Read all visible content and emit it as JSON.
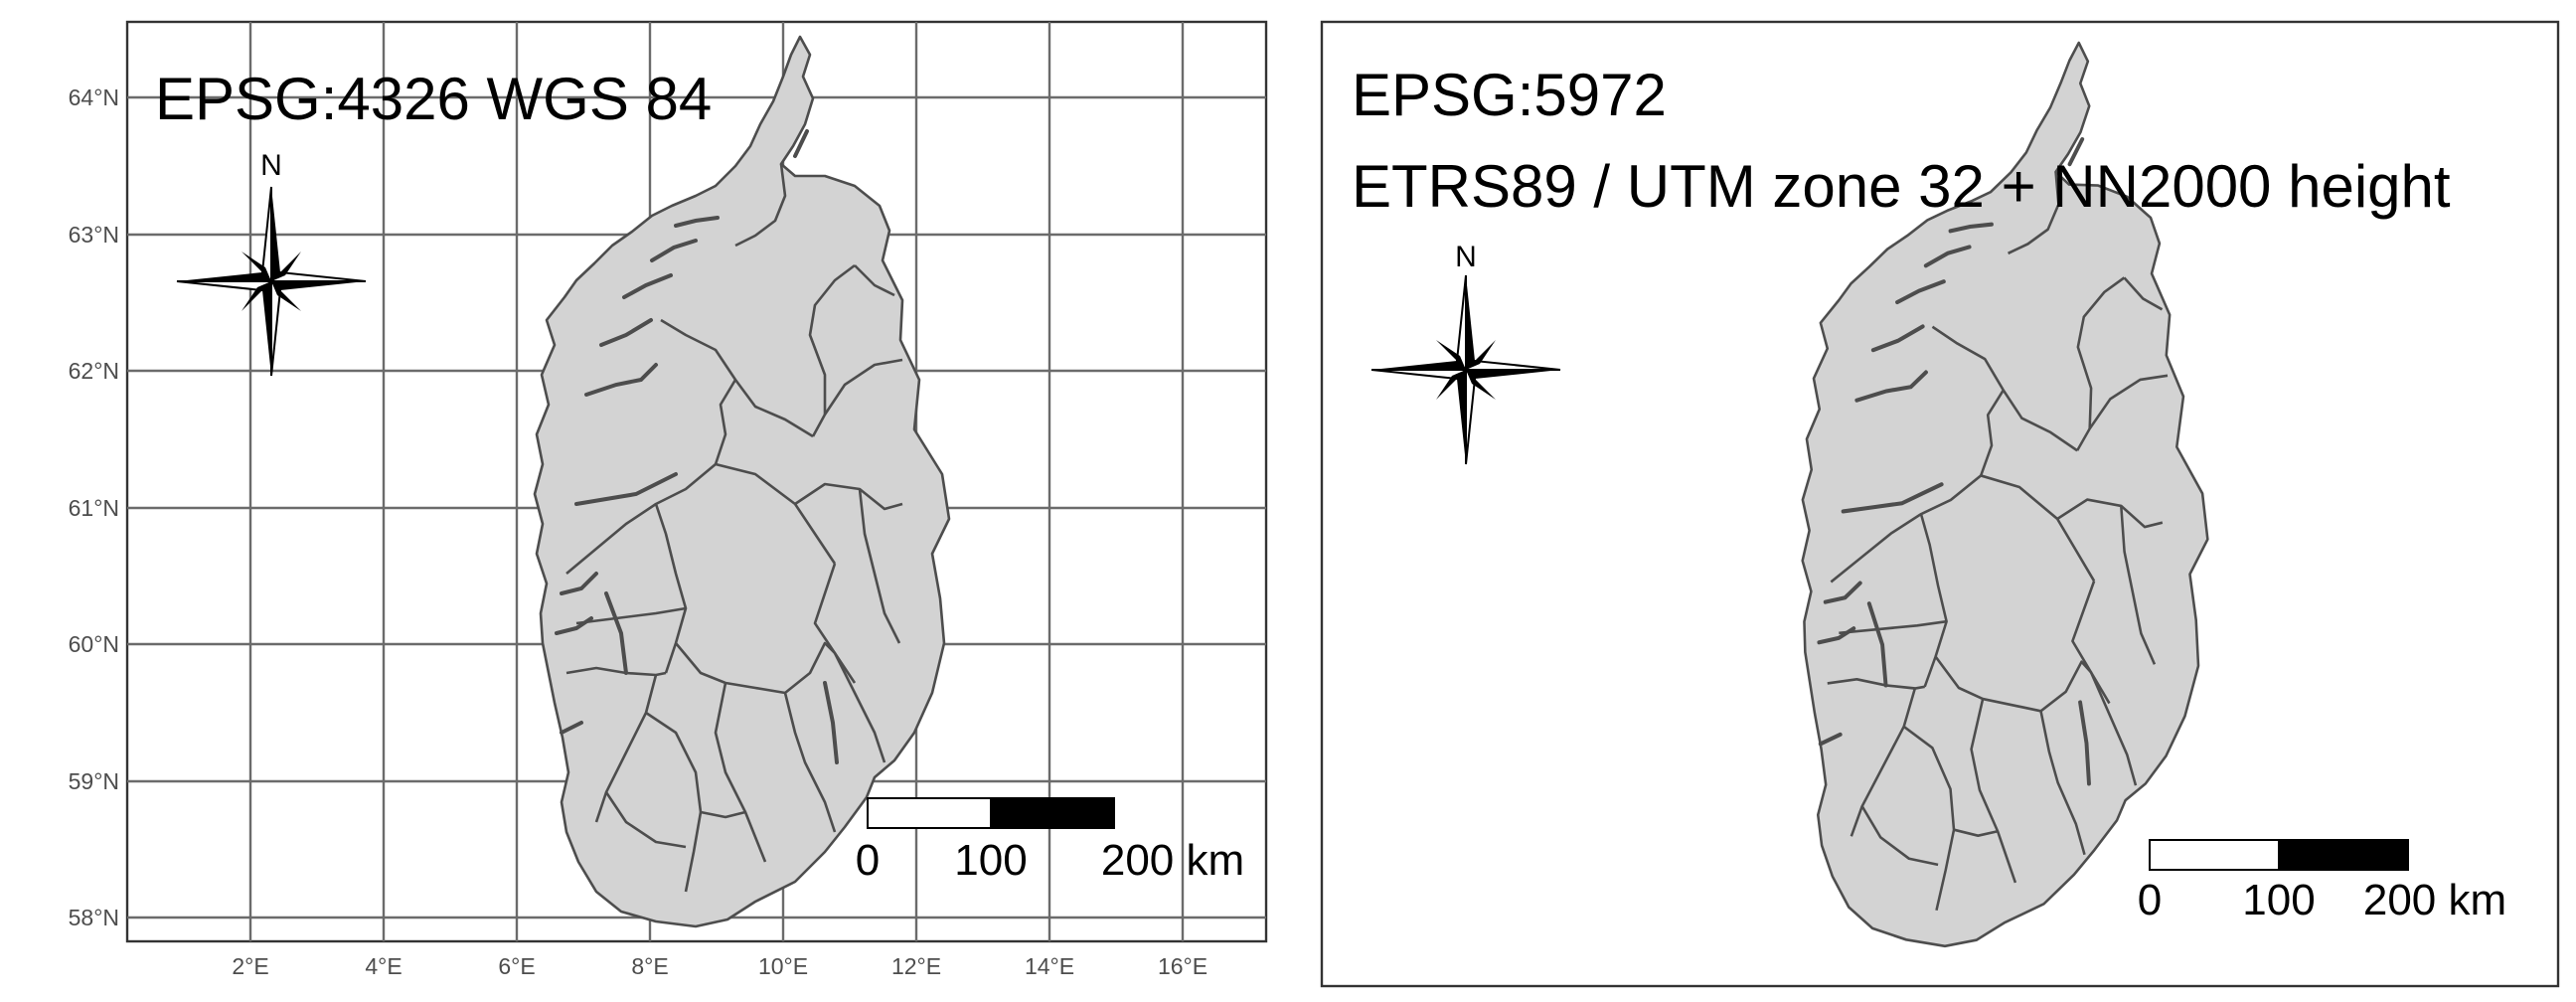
{
  "left_map": {
    "crs_label": "EPSG:4326 WGS 84",
    "lat_ticks": [
      "58°N",
      "59°N",
      "60°N",
      "61°N",
      "62°N",
      "63°N",
      "64°N"
    ],
    "lon_ticks": [
      "2°E",
      "4°E",
      "6°E",
      "8°E",
      "10°E",
      "12°E",
      "14°E",
      "16°E"
    ],
    "north_label": "N",
    "scale_labels": [
      "0",
      "100",
      "200 km"
    ]
  },
  "right_map": {
    "crs_label_1": "EPSG:5972",
    "crs_label_2": "ETRS89 / UTM zone 32 + NN2000 height",
    "north_label": "N",
    "scale_labels": [
      "0",
      "100",
      "200 km"
    ]
  },
  "colors": {
    "land_fill": "#d3d3d3",
    "boundary": "#4d4d4d",
    "graticule": "#6b6b6b",
    "scale_dark": "#000000",
    "scale_light": "#ffffff"
  },
  "icons": [
    "north-arrow-icon",
    "north-arrow-icon"
  ]
}
